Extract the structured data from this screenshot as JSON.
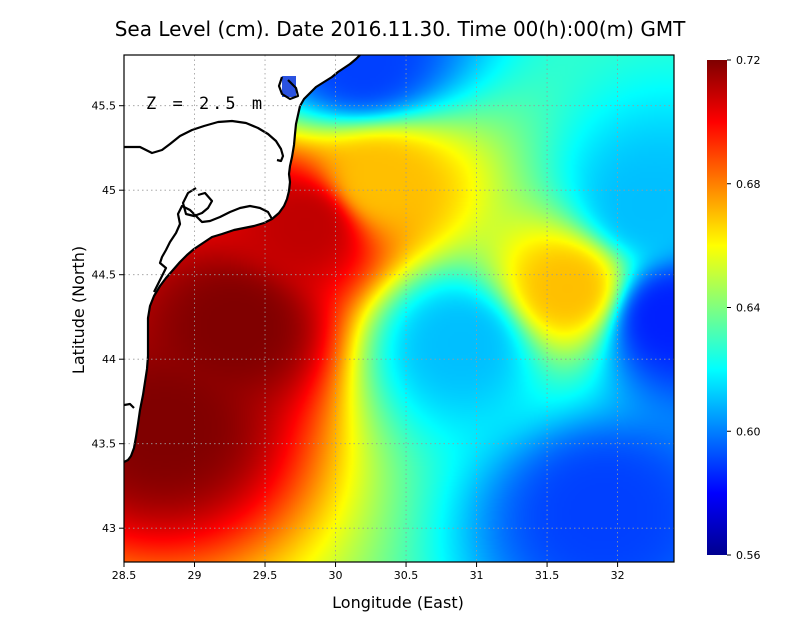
{
  "chart_data": {
    "type": "heatmap",
    "title": "Sea Level (cm). Date 2016.11.30. Time 00(h):00(m) GMT",
    "annotation": "Z = 2.5 m",
    "xlabel": "Longitude (East)",
    "ylabel": "Latitude (North)",
    "xlim": [
      28.5,
      32.4
    ],
    "ylim": [
      42.8,
      45.8
    ],
    "xticks": [
      28.5,
      29,
      29.5,
      30,
      30.5,
      31,
      31.5,
      32
    ],
    "xtick_labels": [
      "28.5",
      "29",
      "29.5",
      "30",
      "30.5",
      "31",
      "31.5",
      "32"
    ],
    "yticks": [
      43,
      43.5,
      44,
      44.5,
      45,
      45.5
    ],
    "ytick_labels": [
      "43",
      "43.5",
      "44",
      "44.5",
      "45",
      "45.5"
    ],
    "grid": true,
    "colorbar": {
      "min": 0.56,
      "max": 0.72,
      "ticks": [
        "0.72",
        "0.68",
        "0.64",
        "0.60",
        "0.56"
      ],
      "colormap": "jet"
    },
    "field_features": [
      {
        "lon": 28.8,
        "lat": 43.6,
        "value": 0.72,
        "kind": "max"
      },
      {
        "lon": 29.3,
        "lat": 44.2,
        "value": 0.72,
        "kind": "max"
      },
      {
        "lon": 29.8,
        "lat": 44.8,
        "value": 0.71,
        "kind": "high"
      },
      {
        "lon": 30.3,
        "lat": 45.05,
        "value": 0.67,
        "kind": "high"
      },
      {
        "lon": 31.65,
        "lat": 44.42,
        "value": 0.67,
        "kind": "local-max"
      },
      {
        "lon": 30.9,
        "lat": 44.1,
        "value": 0.61,
        "kind": "local-min"
      },
      {
        "lon": 32.35,
        "lat": 44.25,
        "value": 0.585,
        "kind": "min"
      },
      {
        "lon": 31.9,
        "lat": 43.1,
        "value": 0.59,
        "kind": "min"
      },
      {
        "lon": 30.2,
        "lat": 45.75,
        "value": 0.59,
        "kind": "min"
      },
      {
        "lon": 32.2,
        "lat": 44.9,
        "value": 0.61,
        "kind": "low"
      }
    ]
  },
  "colors": {
    "land": "#ffffff",
    "coastline": "#000000",
    "grid": "#9a9a9a"
  }
}
